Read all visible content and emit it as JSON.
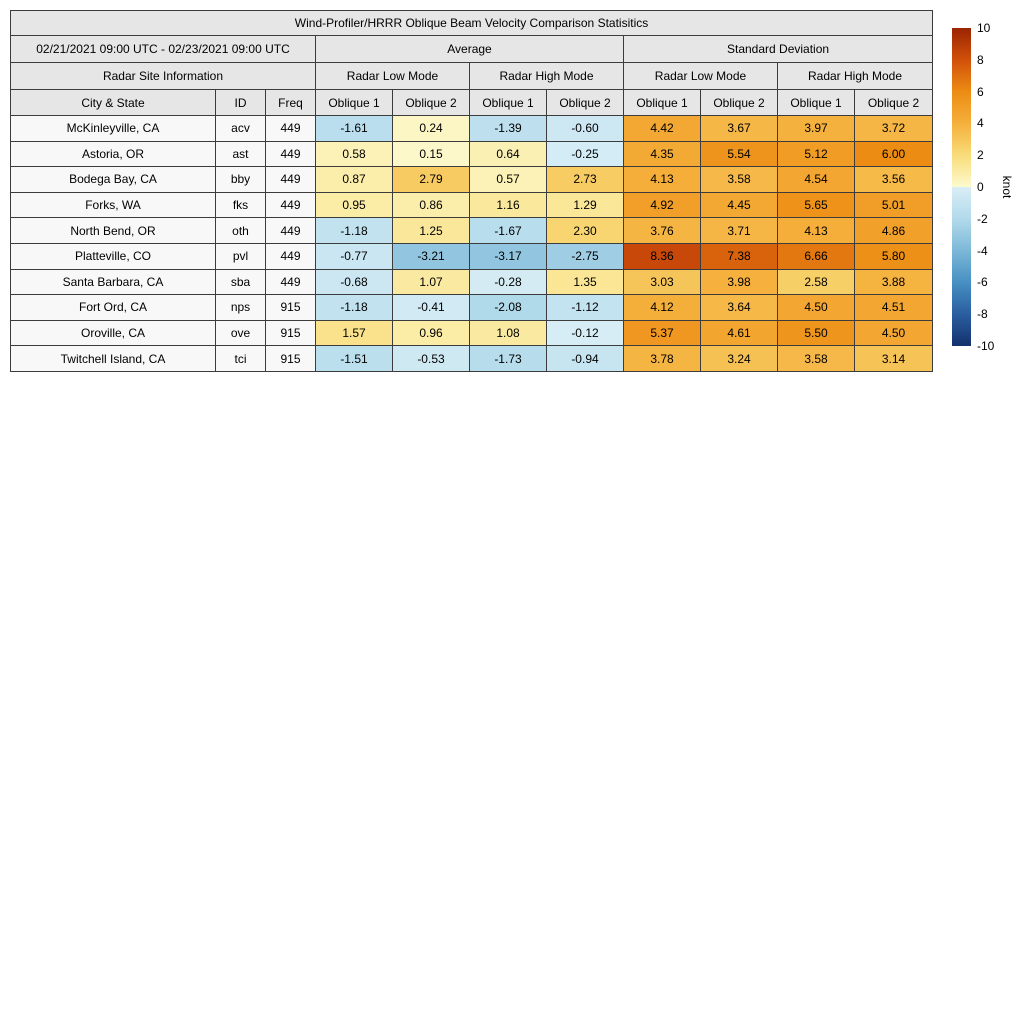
{
  "chart_data": {
    "type": "heatmap",
    "title": "Wind-Profiler/HRRR Oblique Beam Velocity Comparison Statisitics",
    "unit": "knot",
    "color_range": [
      -10,
      10
    ],
    "header": {
      "date_range": "02/21/2021 09:00 UTC - 02/23/2021 09:00 UTC",
      "average": "Average",
      "std": "Standard Deviation",
      "site_info": "Radar Site Information",
      "low_mode": "Radar Low Mode",
      "high_mode": "Radar High Mode",
      "city_state": "City & State",
      "id": "ID",
      "freq": "Freq",
      "oblique1": "Oblique 1",
      "oblique2": "Oblique 2"
    },
    "rows": [
      {
        "city": "McKinleyville, CA",
        "id": "acv",
        "freq": "449",
        "values": [
          -1.61,
          0.24,
          -1.39,
          -0.6,
          4.42,
          3.67,
          3.97,
          3.72
        ]
      },
      {
        "city": "Astoria, OR",
        "id": "ast",
        "freq": "449",
        "values": [
          0.58,
          0.15,
          0.64,
          -0.25,
          4.35,
          5.54,
          5.12,
          6.0
        ]
      },
      {
        "city": "Bodega Bay, CA",
        "id": "bby",
        "freq": "449",
        "values": [
          0.87,
          2.79,
          0.57,
          2.73,
          4.13,
          3.58,
          4.54,
          3.56
        ]
      },
      {
        "city": "Forks, WA",
        "id": "fks",
        "freq": "449",
        "values": [
          0.95,
          0.86,
          1.16,
          1.29,
          4.92,
          4.45,
          5.65,
          5.01
        ]
      },
      {
        "city": "North Bend, OR",
        "id": "oth",
        "freq": "449",
        "values": [
          -1.18,
          1.25,
          -1.67,
          2.3,
          3.76,
          3.71,
          4.13,
          4.86
        ]
      },
      {
        "city": "Platteville, CO",
        "id": "pvl",
        "freq": "449",
        "values": [
          -0.77,
          -3.21,
          -3.17,
          -2.75,
          8.36,
          7.38,
          6.66,
          5.8
        ]
      },
      {
        "city": "Santa Barbara, CA",
        "id": "sba",
        "freq": "449",
        "values": [
          -0.68,
          1.07,
          -0.28,
          1.35,
          3.03,
          3.98,
          2.58,
          3.88
        ]
      },
      {
        "city": "Fort Ord, CA",
        "id": "nps",
        "freq": "915",
        "values": [
          -1.18,
          -0.41,
          -2.08,
          -1.12,
          4.12,
          3.64,
          4.5,
          4.51
        ]
      },
      {
        "city": "Oroville, CA",
        "id": "ove",
        "freq": "915",
        "values": [
          1.57,
          0.96,
          1.08,
          -0.12,
          5.37,
          4.61,
          5.5,
          4.5
        ]
      },
      {
        "city": "Twitchell Island, CA",
        "id": "tci",
        "freq": "915",
        "values": [
          -1.51,
          -0.53,
          -1.73,
          -0.94,
          3.78,
          3.24,
          3.58,
          3.14
        ]
      }
    ],
    "colorbar": {
      "ticks": [
        10,
        8,
        6,
        4,
        2,
        0,
        -2,
        -4,
        -6,
        -8,
        -10
      ],
      "unit": "knot",
      "stops": [
        {
          "v": -10,
          "c": "#14316c"
        },
        {
          "v": -8,
          "c": "#2a5ea0"
        },
        {
          "v": -6,
          "c": "#4690c2"
        },
        {
          "v": -4,
          "c": "#7cb8d8"
        },
        {
          "v": -2,
          "c": "#b2daeb"
        },
        {
          "v": -0.001,
          "c": "#d9eef6"
        },
        {
          "v": 0,
          "c": "#fdfacf"
        },
        {
          "v": 2,
          "c": "#f8dc79"
        },
        {
          "v": 4,
          "c": "#f5b03c"
        },
        {
          "v": 6,
          "c": "#ec8c13"
        },
        {
          "v": 8,
          "c": "#d1500a"
        },
        {
          "v": 10,
          "c": "#9b2403"
        }
      ]
    }
  },
  "colors": {
    "header_bg": "#e6e6e6",
    "cell_bg": "#f8f8f8",
    "border": "#3c3c3c"
  }
}
